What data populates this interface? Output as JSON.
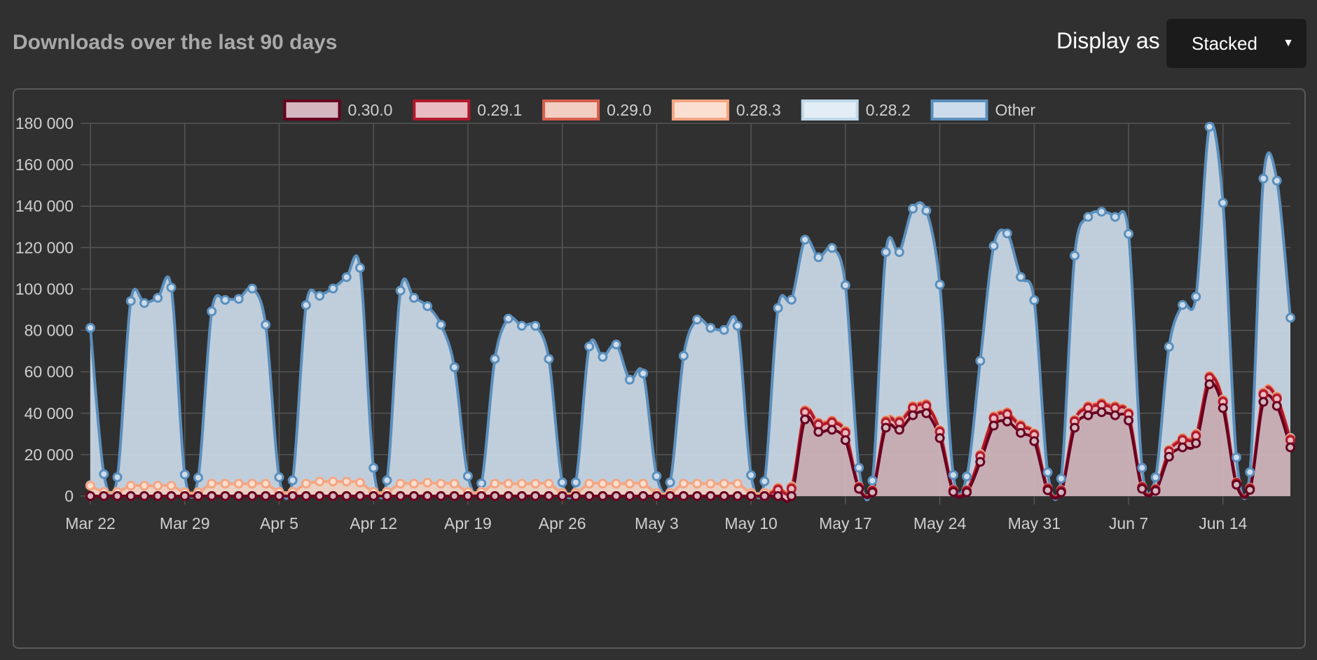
{
  "header": {
    "title": "Downloads over the last 90 days",
    "display_label": "Display as",
    "display_value": "Stacked"
  },
  "chart_data": {
    "type": "area",
    "stacked": true,
    "legend_position": "top",
    "grid": true,
    "ylim": [
      0,
      180000
    ],
    "y_ticks": [
      0,
      20000,
      40000,
      60000,
      80000,
      100000,
      120000,
      140000,
      160000,
      180000
    ],
    "y_tick_labels": [
      "0",
      "20 000",
      "40 000",
      "60 000",
      "80 000",
      "100 000",
      "120 000",
      "140 000",
      "160 000",
      "180 000"
    ],
    "x_tick_labels": [
      "Mar 22",
      "Mar 29",
      "Apr 5",
      "Apr 12",
      "Apr 19",
      "Apr 26",
      "May 3",
      "May 10",
      "May 17",
      "May 24",
      "May 31",
      "Jun 7",
      "Jun 14"
    ],
    "x": [
      "Mar 22",
      "Mar 23",
      "Mar 24",
      "Mar 25",
      "Mar 26",
      "Mar 27",
      "Mar 28",
      "Mar 29",
      "Mar 30",
      "Mar 31",
      "Apr 1",
      "Apr 2",
      "Apr 3",
      "Apr 4",
      "Apr 5",
      "Apr 6",
      "Apr 7",
      "Apr 8",
      "Apr 9",
      "Apr 10",
      "Apr 11",
      "Apr 12",
      "Apr 13",
      "Apr 14",
      "Apr 15",
      "Apr 16",
      "Apr 17",
      "Apr 18",
      "Apr 19",
      "Apr 20",
      "Apr 21",
      "Apr 22",
      "Apr 23",
      "Apr 24",
      "Apr 25",
      "Apr 26",
      "Apr 27",
      "Apr 28",
      "Apr 29",
      "Apr 30",
      "May 1",
      "May 2",
      "May 3",
      "May 4",
      "May 5",
      "May 6",
      "May 7",
      "May 8",
      "May 9",
      "May 10",
      "May 11",
      "May 12",
      "May 13",
      "May 14",
      "May 15",
      "May 16",
      "May 17",
      "May 18",
      "May 19",
      "May 20",
      "May 21",
      "May 22",
      "May 23",
      "May 24",
      "May 25",
      "May 26",
      "May 27",
      "May 28",
      "May 29",
      "May 30",
      "May 31",
      "Jun 1",
      "Jun 2",
      "Jun 3",
      "Jun 4",
      "Jun 5",
      "Jun 6",
      "Jun 7",
      "Jun 8",
      "Jun 9",
      "Jun 10",
      "Jun 11",
      "Jun 12",
      "Jun 13",
      "Jun 14",
      "Jun 15",
      "Jun 16",
      "Jun 17",
      "Jun 18",
      "Jun 19"
    ],
    "series": [
      {
        "name": "0.30.0",
        "stroke": "#67001f",
        "fill": "#d4b7bf",
        "values": [
          0,
          0,
          0,
          0,
          0,
          0,
          0,
          0,
          0,
          0,
          0,
          0,
          0,
          0,
          0,
          0,
          0,
          0,
          0,
          0,
          0,
          0,
          0,
          0,
          0,
          0,
          0,
          0,
          0,
          0,
          0,
          0,
          0,
          0,
          0,
          0,
          0,
          0,
          0,
          0,
          0,
          0,
          0,
          0,
          0,
          0,
          0,
          0,
          0,
          0,
          0,
          0,
          0,
          37000,
          31000,
          32000,
          27000,
          3500,
          1800,
          33000,
          32000,
          39000,
          40000,
          28000,
          2000,
          1800,
          16500,
          34000,
          36000,
          30500,
          26500,
          2800,
          1800,
          33000,
          39000,
          40500,
          39000,
          36500,
          3500,
          2500,
          19000,
          23500,
          25500,
          54000,
          42500,
          5500,
          3000,
          45500,
          43500,
          23500
        ]
      },
      {
        "name": "0.29.1",
        "stroke": "#b2182b",
        "fill": "#e8bcc2",
        "values": [
          0,
          0,
          0,
          0,
          0,
          0,
          0,
          0,
          0,
          0,
          0,
          0,
          0,
          0,
          0,
          0,
          0,
          0,
          0,
          0,
          0,
          0,
          0,
          0,
          0,
          0,
          0,
          0,
          0,
          0,
          0,
          0,
          0,
          0,
          0,
          0,
          0,
          0,
          0,
          0,
          0,
          0,
          0,
          0,
          0,
          0,
          0,
          0,
          0,
          0,
          0,
          3000,
          3500,
          3500,
          3500,
          3500,
          3500,
          700,
          700,
          2500,
          3500,
          3500,
          3500,
          3000,
          800,
          800,
          2700,
          3500,
          3500,
          3000,
          3000,
          800,
          800,
          3000,
          3500,
          3500,
          3500,
          3000,
          800,
          700,
          2500,
          3500,
          3500,
          3000,
          3000,
          800,
          700,
          3500,
          3500,
          3500
        ]
      },
      {
        "name": "0.29.0",
        "stroke": "#d6604d",
        "fill": "#f1cdc2",
        "values": [
          0,
          0,
          0,
          0,
          0,
          0,
          0,
          0,
          0,
          0,
          0,
          0,
          0,
          0,
          0,
          0,
          0,
          0,
          0,
          0,
          0,
          0,
          0,
          0,
          0,
          0,
          0,
          0,
          0,
          0,
          0,
          0,
          0,
          0,
          0,
          0,
          0,
          0,
          0,
          0,
          0,
          0,
          0,
          0,
          0,
          0,
          0,
          0,
          0,
          0,
          0,
          600,
          600,
          600,
          600,
          600,
          600,
          200,
          200,
          600,
          600,
          600,
          600,
          500,
          150,
          150,
          500,
          600,
          600,
          600,
          500,
          150,
          150,
          500,
          600,
          600,
          600,
          500,
          150,
          150,
          500,
          600,
          600,
          600,
          500,
          150,
          150,
          600,
          600,
          500
        ]
      },
      {
        "name": "0.28.3",
        "stroke": "#f4a582",
        "fill": "#fbdfd0",
        "values": [
          5000,
          2000,
          2000,
          5000,
          5000,
          5000,
          5000,
          1800,
          1800,
          6000,
          6000,
          6000,
          6000,
          6000,
          2000,
          2000,
          6000,
          7000,
          7000,
          7000,
          6500,
          2000,
          2000,
          6000,
          6000,
          6500,
          6000,
          6000,
          2000,
          2000,
          6000,
          6000,
          6000,
          6000,
          6000,
          1500,
          1500,
          6000,
          6000,
          6000,
          6000,
          6000,
          1500,
          1500,
          6000,
          6000,
          6000,
          6000,
          6000,
          1500,
          1500,
          500,
          500,
          500,
          500,
          500,
          500,
          150,
          150,
          500,
          500,
          500,
          500,
          400,
          100,
          100,
          400,
          500,
          500,
          500,
          400,
          100,
          100,
          400,
          500,
          500,
          500,
          400,
          100,
          100,
          400,
          500,
          500,
          500,
          400,
          100,
          100,
          500,
          500,
          400
        ]
      },
      {
        "name": "0.28.2",
        "stroke": "#bfd8ea",
        "fill": "#e2edf5",
        "values": [
          200,
          100,
          100,
          200,
          200,
          200,
          200,
          100,
          100,
          200,
          200,
          200,
          200,
          200,
          100,
          100,
          200,
          200,
          200,
          200,
          200,
          100,
          100,
          200,
          200,
          200,
          200,
          200,
          100,
          100,
          200,
          200,
          200,
          200,
          200,
          100,
          100,
          200,
          200,
          200,
          200,
          200,
          100,
          100,
          200,
          200,
          200,
          200,
          200,
          100,
          100,
          200,
          200,
          200,
          200,
          200,
          200,
          100,
          100,
          200,
          200,
          200,
          200,
          200,
          100,
          100,
          200,
          200,
          200,
          200,
          200,
          100,
          100,
          200,
          200,
          200,
          200,
          200,
          100,
          100,
          200,
          200,
          200,
          200,
          200,
          100,
          100,
          200,
          200,
          200
        ]
      },
      {
        "name": "Other",
        "stroke": "#5b8fbc",
        "fill": "#cddcec",
        "values": [
          76000,
          8500,
          7000,
          89000,
          88000,
          90500,
          95500,
          8500,
          7000,
          83000,
          88500,
          89000,
          94000,
          76500,
          7000,
          5500,
          86000,
          89500,
          93000,
          98500,
          103500,
          11500,
          5500,
          93000,
          89500,
          85000,
          76500,
          56000,
          7500,
          4000,
          60000,
          79500,
          76000,
          76000,
          60000,
          5000,
          5000,
          66000,
          61000,
          67000,
          50000,
          53000,
          8000,
          5000,
          61500,
          79000,
          75000,
          74000,
          76000,
          8500,
          5500,
          86500,
          90000,
          82000,
          79500,
          83000,
          70000,
          9000,
          4500,
          81000,
          81000,
          95000,
          93000,
          70000,
          7000,
          6500,
          45000,
          82000,
          86000,
          71000,
          64000,
          7500,
          5500,
          79000,
          91000,
          92000,
          91000,
          86000,
          9000,
          5500,
          49500,
          64000,
          66000,
          120000,
          95000,
          12000,
          7500,
          103000,
          104000,
          58000
        ]
      }
    ]
  }
}
